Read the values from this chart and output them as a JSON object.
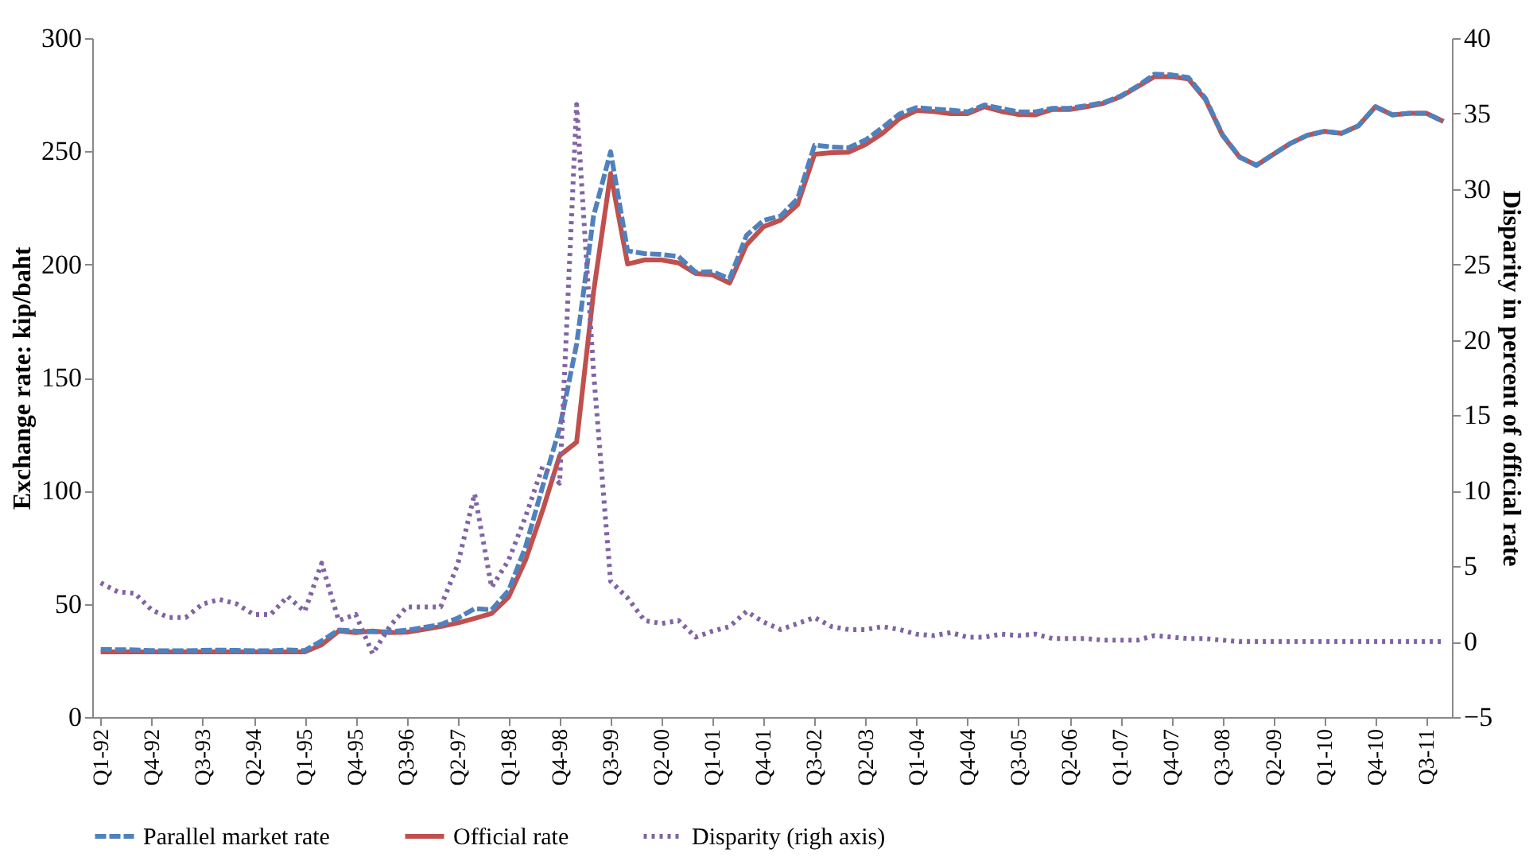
{
  "chart_data": {
    "type": "line",
    "categories": [
      "Q1-92",
      null,
      null,
      "Q4-92",
      null,
      null,
      "Q3-93",
      null,
      null,
      "Q2-94",
      null,
      null,
      "Q1-95",
      null,
      null,
      "Q4-95",
      null,
      null,
      "Q3-96",
      null,
      null,
      "Q2-97",
      null,
      null,
      "Q1-98",
      null,
      null,
      "Q4-98",
      null,
      null,
      "Q3-99",
      null,
      null,
      "Q2-00",
      null,
      null,
      "Q1-01",
      null,
      null,
      "Q4-01",
      null,
      null,
      "Q3-02",
      null,
      null,
      "Q2-03",
      null,
      null,
      "Q1-04",
      null,
      null,
      "Q4-04",
      null,
      null,
      "Q3-05",
      null,
      null,
      "Q2-06",
      null,
      null,
      "Q1-07",
      null,
      null,
      "Q4-07",
      null,
      null,
      "Q3-08",
      null,
      null,
      "Q2-09",
      null,
      null,
      "Q1-10",
      null,
      null,
      "Q4-10",
      null,
      null,
      "Q3-11",
      null
    ],
    "ylabel": "Exchange rate: kip/baht",
    "y2label": "Disparity in percent of official rate",
    "ylim": [
      0,
      300
    ],
    "yticks": [
      0,
      50,
      100,
      150,
      200,
      250,
      300
    ],
    "y2lim": [
      -5,
      40
    ],
    "y2ticks": [
      -5,
      0,
      5,
      10,
      15,
      20,
      25,
      30,
      35,
      40
    ],
    "grid": false,
    "legend": "bottom",
    "series": [
      {
        "name": "Parallel market rate",
        "color": "#4f81bd",
        "line_style": "dashed",
        "values": [
          29.9,
          29.8,
          29.7,
          29.4,
          29.3,
          29.3,
          29.5,
          29.6,
          29.5,
          29.3,
          29.3,
          29.7,
          29.4,
          33.7,
          38.5,
          38.0,
          37.7,
          37.7,
          38.4,
          39.6,
          40.9,
          43.7,
          47.9,
          47.4,
          55.9,
          75.3,
          101.9,
          127.6,
          164.8,
          221.5,
          249.8,
          206.0,
          204.8,
          204.4,
          203.5,
          196.6,
          196.8,
          193.7,
          212.9,
          219.5,
          221.4,
          229.1,
          252.7,
          251.9,
          251.6,
          255.0,
          260.5,
          266.5,
          269.3,
          268.7,
          268.2,
          267.4,
          270.5,
          268.9,
          267.4,
          267.4,
          269.0,
          269.0,
          270.2,
          271.5,
          274.4,
          278.8,
          284.1,
          283.8,
          282.6,
          273.4,
          257.4,
          247.5,
          243.8,
          248.7,
          253.5,
          257.1,
          258.8,
          257.9,
          261.3,
          269.7,
          266.1,
          266.8,
          266.8,
          263.2
        ]
      },
      {
        "name": "Official rate",
        "color": "#c0504d",
        "line_style": "solid",
        "values": [
          28.8,
          28.8,
          28.8,
          28.8,
          28.8,
          28.8,
          28.8,
          28.8,
          28.8,
          28.8,
          28.8,
          28.8,
          28.8,
          32.0,
          38.0,
          37.3,
          38.0,
          37.3,
          37.5,
          38.7,
          40.0,
          41.6,
          43.6,
          45.8,
          53.0,
          69.5,
          91.3,
          115.5,
          121.5,
          188.0,
          240.2,
          200.2,
          202.0,
          202.0,
          200.7,
          196.0,
          195.4,
          191.8,
          208.7,
          216.7,
          219.6,
          226.4,
          248.7,
          249.4,
          249.6,
          253.0,
          257.9,
          264.4,
          268.0,
          267.6,
          266.6,
          266.6,
          269.7,
          267.6,
          266.3,
          266.1,
          268.5,
          268.5,
          269.7,
          271.2,
          274.1,
          278.5,
          283.0,
          283.0,
          282.0,
          272.9,
          257.1,
          247.5,
          243.8,
          248.7,
          253.5,
          257.1,
          258.8,
          257.9,
          261.3,
          269.7,
          266.1,
          266.8,
          266.8,
          263.2
        ]
      },
      {
        "name": "Disparity (righ axis)",
        "color": "#8064a2",
        "line_style": "dotted",
        "axis": "y2",
        "values": [
          3.9,
          3.3,
          3.2,
          2.1,
          1.6,
          1.6,
          2.5,
          2.8,
          2.5,
          1.8,
          1.8,
          3.0,
          2.0,
          5.2,
          1.4,
          1.8,
          -0.8,
          1.0,
          2.3,
          2.3,
          2.3,
          5.1,
          9.8,
          3.6,
          5.4,
          8.3,
          11.6,
          10.5,
          35.6,
          17.8,
          4.0,
          2.9,
          1.4,
          1.2,
          1.4,
          0.3,
          0.7,
          1.0,
          2.0,
          1.3,
          0.8,
          1.2,
          1.6,
          1.0,
          0.8,
          0.8,
          1.0,
          0.8,
          0.5,
          0.4,
          0.6,
          0.3,
          0.3,
          0.5,
          0.4,
          0.5,
          0.2,
          0.2,
          0.2,
          0.1,
          0.1,
          0.1,
          0.4,
          0.3,
          0.2,
          0.2,
          0.1,
          0,
          0,
          0,
          0,
          0,
          0,
          0,
          0,
          0,
          0,
          0,
          0,
          0
        ]
      }
    ]
  }
}
